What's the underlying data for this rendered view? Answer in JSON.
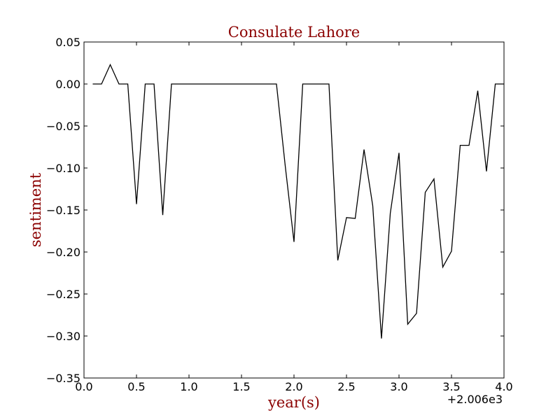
{
  "chart_data": {
    "type": "line",
    "title": "Consulate Lahore",
    "xlabel": "year(s)",
    "ylabel": "sentiment",
    "x_offset_label": "+2.006e3",
    "xlim": [
      0.0,
      4.0
    ],
    "ylim": [
      -0.35,
      0.05
    ],
    "x_ticks": [
      "0.0",
      "0.5",
      "1.0",
      "1.5",
      "2.0",
      "2.5",
      "3.0",
      "3.5",
      "4.0"
    ],
    "y_ticks": [
      "0.05",
      "0.00",
      "−0.05",
      "−0.10",
      "−0.15",
      "−0.20",
      "−0.25",
      "−0.30",
      "−0.35"
    ],
    "grid": false,
    "colors": {
      "title": "#8b0000",
      "line": "#000000"
    },
    "series": [
      {
        "x": [
          0.083,
          0.167,
          0.25,
          0.333,
          0.417,
          0.5,
          0.583,
          0.667,
          0.75,
          0.833,
          0.917,
          1.0,
          1.083,
          1.167,
          1.25,
          1.333,
          1.417,
          1.5,
          1.583,
          1.667,
          1.75,
          1.833,
          1.917,
          2.0,
          2.083,
          2.167,
          2.25,
          2.333,
          2.417,
          2.5,
          2.583,
          2.667,
          2.75,
          2.833,
          2.917,
          3.0,
          3.083,
          3.167,
          3.25,
          3.333,
          3.417,
          3.5,
          3.583,
          3.667,
          3.75,
          3.833,
          3.917,
          4.0
        ],
        "y": [
          0.0,
          0.0,
          0.023,
          0.0,
          0.0,
          -0.143,
          0.0,
          0.0,
          -0.156,
          0.0,
          0.0,
          0.0,
          0.0,
          0.0,
          0.0,
          0.0,
          0.0,
          0.0,
          0.0,
          0.0,
          0.0,
          0.0,
          -0.098,
          -0.188,
          0.0,
          0.0,
          0.0,
          0.0,
          -0.21,
          -0.159,
          -0.16,
          -0.078,
          -0.145,
          -0.303,
          -0.154,
          -0.082,
          -0.286,
          -0.273,
          -0.129,
          -0.113,
          -0.218,
          -0.199,
          -0.073,
          -0.073,
          -0.008,
          -0.104,
          0.0,
          0.0
        ]
      }
    ]
  }
}
